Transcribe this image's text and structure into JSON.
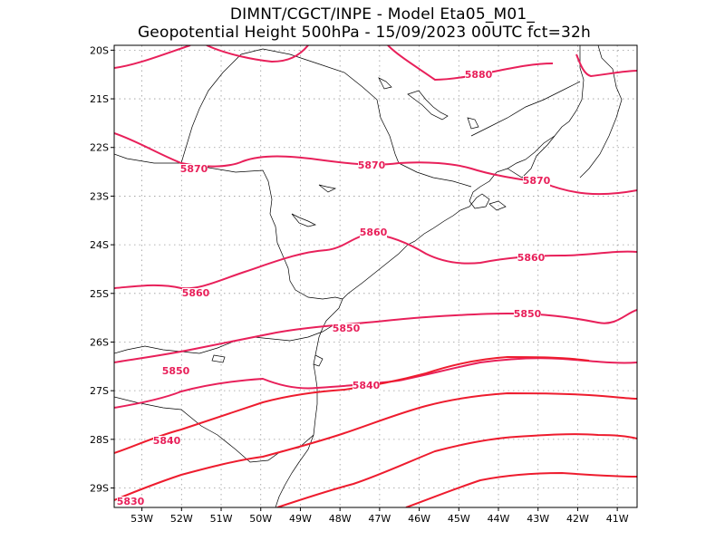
{
  "title_line1": "DIMNT/CGCT/INPE  -  Model Eta05_M01_",
  "title_line2": "Geopotential Height 500hPa  -  15/09/2023 00UTC fct=32h",
  "colors": {
    "contour_pink": "#e8205a",
    "contour_red": "#ee1c2e",
    "coast": "#000000",
    "grid": "#999999"
  },
  "chart_data": {
    "type": "contour-map",
    "variable": "Geopotential Height 500hPa",
    "lon_range": [
      -53.7,
      -40.5
    ],
    "lat_range": [
      -29.4,
      -19.9
    ],
    "x_ticks": [
      "53W",
      "52W",
      "51W",
      "50W",
      "49W",
      "48W",
      "47W",
      "46W",
      "45W",
      "44W",
      "43W",
      "42W",
      "41W"
    ],
    "y_ticks": [
      "20S",
      "21S",
      "22S",
      "23S",
      "24S",
      "25S",
      "26S",
      "27S",
      "28S",
      "29S"
    ],
    "grid": "dotted",
    "contour_labels": [
      "5880",
      "5870",
      "5870",
      "5870",
      "5860",
      "5860",
      "5860",
      "5850",
      "5850",
      "5850",
      "5840",
      "5840",
      "5830"
    ]
  }
}
